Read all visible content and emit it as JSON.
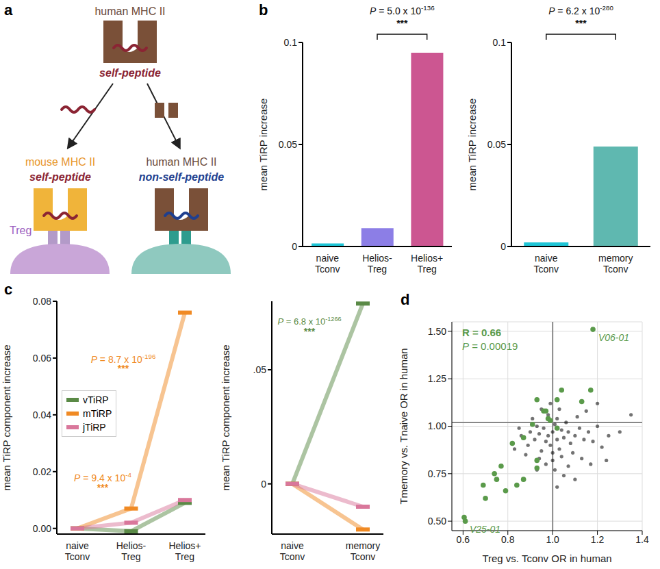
{
  "diagram": {
    "panel": "a",
    "top_mhc": "human MHC II",
    "top_peptide": "self-peptide",
    "left_mhc": "mouse MHC II",
    "left_peptide": "self-peptide",
    "left_cell": "Treg",
    "right_mhc": "human MHC II",
    "right_peptide": "non-self-peptide"
  },
  "chart_data": [
    {
      "panel": "b",
      "type": "bar",
      "y_label": "mean TiRP increase",
      "categories": [
        "naive Tconv",
        "Helios- Treg",
        "Helios+ Treg"
      ],
      "values": [
        0.0015,
        0.009,
        0.095
      ],
      "colors": [
        "#1fc5d6",
        "#8c7ee6",
        "#cc5691"
      ],
      "ylim": [
        0,
        0.1
      ],
      "yticks": [
        0,
        0.05,
        0.1
      ],
      "annotations": [
        {
          "text": "P = 5.0 x 10-136",
          "color": "#111111"
        },
        {
          "text": "***",
          "color": "#111111"
        }
      ]
    },
    {
      "type": "bar",
      "y_label": "mean TiRP increase",
      "categories": [
        "naive Tconv",
        "memory Tconv"
      ],
      "values": [
        0.002,
        0.049
      ],
      "colors": [
        "#1fc5d6",
        "#5fb8b0"
      ],
      "ylim": [
        0,
        0.1
      ],
      "yticks": [
        0,
        0.05,
        0.1
      ],
      "annotations": [
        {
          "text": "P = 6.2 x 10-280",
          "color": "#111111"
        },
        {
          "text": "***",
          "color": "#111111"
        }
      ]
    },
    {
      "panel": "c",
      "type": "line",
      "y_label": "mean TiRP component increase",
      "categories": [
        "naive Tconv",
        "Helios- Treg",
        "Helios+ Treg"
      ],
      "series": [
        {
          "name": "vTiRP",
          "color": "#5a8a46",
          "values": [
            0,
            -0.001,
            0.009
          ]
        },
        {
          "name": "mTiRP",
          "color": "#f08a24",
          "values": [
            0,
            0.007,
            0.076
          ]
        },
        {
          "name": "jTiRP",
          "color": "#d9779b",
          "values": [
            0,
            0.002,
            0.01
          ]
        }
      ],
      "marker": "dash",
      "legend": "upper left",
      "ylim": [
        -0.002,
        0.08
      ],
      "yticks": [
        {
          "value": 0,
          "label": "0.00"
        },
        {
          "value": 0.02,
          "label": "0.02"
        },
        {
          "value": 0.04,
          "label": "0.04"
        },
        {
          "value": 0.06,
          "label": "0.06"
        },
        {
          "value": 0.08,
          "label": "0.08"
        }
      ],
      "annotations": [
        {
          "text": "P = 8.7 x 10-196",
          "color": "#f08a24"
        },
        {
          "text": "***",
          "color": "#f08a24"
        },
        {
          "text": "P = 9.4 x 10-4",
          "color": "#f08a24"
        },
        {
          "text": "***",
          "color": "#f08a24"
        }
      ]
    },
    {
      "type": "line",
      "y_label": "mean TiRP component increase",
      "categories": [
        "naive Tconv",
        "memory Tconv"
      ],
      "series": [
        {
          "name": "vTiRP",
          "color": "#5a8a46",
          "values": [
            0,
            0.079
          ]
        },
        {
          "name": "mTiRP",
          "color": "#f08a24",
          "values": [
            0,
            -0.02
          ]
        },
        {
          "name": "jTiRP",
          "color": "#d9779b",
          "values": [
            0,
            -0.01
          ]
        }
      ],
      "marker": "dash",
      "ylim": [
        -0.022,
        0.08
      ],
      "yticks": [
        0,
        {
          "value": 0.05,
          "label": ".05"
        }
      ],
      "annotations": [
        {
          "text": "P = 6.8 x 10-1266",
          "color": "#5a8a46"
        },
        {
          "text": "***",
          "color": "#5a8a46"
        }
      ]
    },
    {
      "panel": "d",
      "type": "scatter",
      "x_label": "Treg vs. Tconv OR in human",
      "y_label": "Tmemory vs. Tnaive OR in human",
      "xlim": [
        0.55,
        1.4
      ],
      "ylim": [
        0.45,
        1.55
      ],
      "xticks": [
        0.6,
        0.8,
        {
          "value": 1.0,
          "label": "1.0"
        },
        1.2,
        1.4
      ],
      "yticks": [
        {
          "value": 0.5,
          "label": "0.50"
        },
        0.75,
        {
          "value": 1.0,
          "label": "1.00"
        },
        1.25,
        {
          "value": 1.5,
          "label": "1.50"
        }
      ],
      "grid": true,
      "reference_lines": {
        "x": 1.0,
        "y": 1.02
      },
      "series": [
        {
          "color": "#000000",
          "x": [
            0.98,
            1.0,
            1.02,
            0.96,
            1.04,
            1.01,
            0.99,
            1.03,
            0.97,
            1.05,
            0.94,
            1.07,
            1.0,
            1.02,
            0.93,
            1.08,
            0.95,
            1.1,
            0.92,
            1.06,
            1.0,
            0.98,
            1.12,
            0.9,
            1.04,
            0.97,
            1.09,
            1.14,
            0.89,
            1.11,
            0.95,
            1.03,
            1.16,
            0.88,
            1.13,
            1.01,
            0.94,
            1.18,
            1.07,
            0.91,
            1.2,
            0.86,
            1.15,
            1.05,
            0.99,
            1.22,
            0.85,
            1.17,
            0.93,
            1.25,
            1.1,
            1.3,
            1.02,
            1.2,
            1.35,
            0.83,
            1.24
          ],
          "y": [
            0.95,
            0.97,
            0.93,
            0.99,
            0.98,
            1.01,
            0.9,
            0.88,
            0.92,
            0.94,
            0.96,
            0.97,
            0.86,
            1.04,
            1.0,
            0.91,
            0.87,
            0.95,
            0.93,
            1.02,
            0.82,
            1.06,
            0.99,
            0.97,
            0.84,
            0.8,
            0.86,
            0.93,
            0.9,
            1.05,
            1.09,
            1.09,
            0.97,
            0.85,
            0.83,
            0.77,
            0.83,
            0.92,
            0.79,
            1.04,
            1.0,
            0.95,
            1.08,
            0.74,
            1.12,
            0.89,
            0.99,
            0.8,
            0.77,
            0.95,
            0.72,
            0.97,
            0.68,
            1.12,
            1.06,
            0.88,
            0.82
          ]
        },
        {
          "color": "#5a9a4a",
          "x": [
            1.18,
            0.605,
            0.61,
            0.69,
            0.74,
            0.75,
            0.77,
            0.82,
            0.87,
            0.93,
            0.93,
            0.87,
            0.91,
            0.96,
            1.02,
            1.04,
            0.93,
            0.97,
            0.98,
            0.99,
            1.02,
            1.17,
            1.13,
            0.84,
            0.79,
            0.7
          ],
          "y": [
            1.51,
            0.52,
            0.5,
            0.69,
            0.75,
            0.72,
            0.79,
            0.91,
            0.72,
            0.82,
            0.78,
            0.94,
            1.01,
            1.08,
            1.14,
            1.19,
            1.14,
            1.08,
            1.04,
            1.03,
            0.99,
            1.19,
            1.13,
            0.69,
            0.66,
            0.62
          ]
        }
      ],
      "annotations": [
        {
          "text": "R = 0.66",
          "color": "#5a9a4a"
        },
        {
          "text": "P = 0.00019",
          "color": "#5a9a4a"
        },
        {
          "text": "V06-01",
          "x": 1.18,
          "y": 1.51,
          "color": "#5a9a4a"
        },
        {
          "text": "V25-01",
          "x": 0.605,
          "y": 0.5,
          "color": "#5a9a4a"
        }
      ]
    }
  ]
}
